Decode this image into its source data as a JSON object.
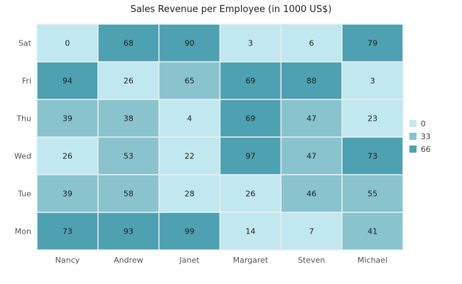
{
  "chart_data": {
    "type": "heatmap",
    "title": "Sales Revenue per Employee (in 1000 US$)",
    "x_categories": [
      "Nancy",
      "Andrew",
      "Janet",
      "Margaret",
      "Steven",
      "Michael"
    ],
    "y_categories": [
      "Mon",
      "Tue",
      "Wed",
      "Thu",
      "Fri",
      "Sat"
    ],
    "values": {
      "Nancy": [
        73,
        39,
        26,
        39,
        94,
        0
      ],
      "Andrew": [
        93,
        58,
        53,
        38,
        26,
        68
      ],
      "Janet": [
        99,
        28,
        22,
        4,
        65,
        90
      ],
      "Margaret": [
        14,
        26,
        97,
        69,
        69,
        3
      ],
      "Steven": [
        7,
        46,
        47,
        47,
        88,
        6
      ],
      "Michael": [
        41,
        55,
        73,
        23,
        3,
        79
      ]
    },
    "legend": {
      "placement": "right",
      "entries": [
        {
          "label": "0",
          "min": 0,
          "color": "#c1e8ee"
        },
        {
          "label": "33",
          "min": 33,
          "color": "#88c3ce"
        },
        {
          "label": "66",
          "min": 66,
          "color": "#4da1b1"
        }
      ]
    },
    "data_labels": true
  }
}
